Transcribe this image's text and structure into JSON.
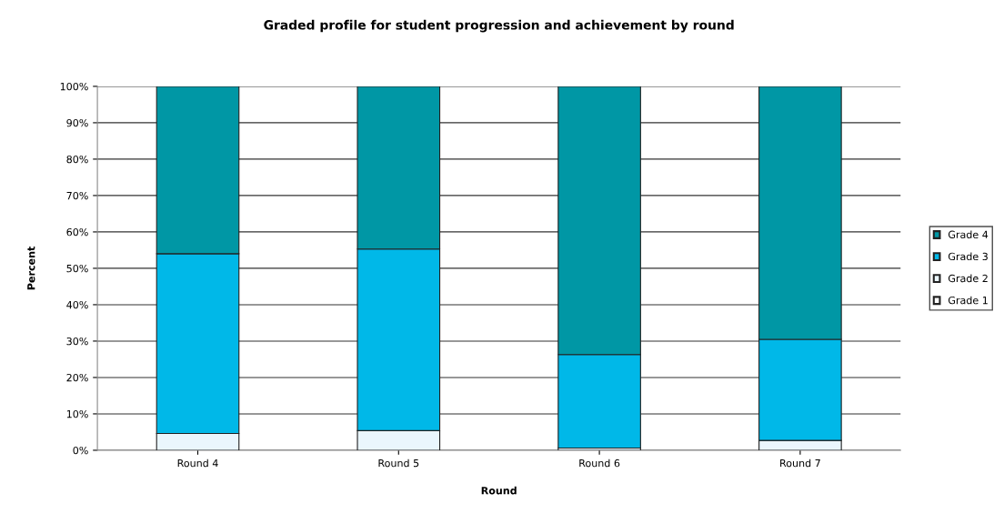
{
  "chart_data": {
    "type": "bar",
    "stacked": true,
    "title": "Graded profile for student progression and achievement by round",
    "xlabel": "Round",
    "ylabel": "Percent",
    "categories": [
      "Round 4",
      "Round 5",
      "Round 6",
      "Round 7"
    ],
    "series": [
      {
        "name": "Grade 1",
        "color": "#ffffff",
        "values": [
          0,
          0,
          0,
          0
        ]
      },
      {
        "name": "Grade 2",
        "color": "#eaf6fd",
        "values": [
          4.6,
          5.4,
          0.6,
          2.7
        ]
      },
      {
        "name": "Grade 3",
        "color": "#00b8e8",
        "values": [
          49.4,
          49.9,
          25.7,
          27.8
        ]
      },
      {
        "name": "Grade 4",
        "color": "#0097a5",
        "values": [
          46,
          44.7,
          73.7,
          69.5
        ]
      }
    ],
    "ylim": [
      0,
      100
    ],
    "yticks": [
      {
        "value": 0,
        "label": "0%"
      },
      {
        "value": 10,
        "label": "10%"
      },
      {
        "value": 20,
        "label": "20%"
      },
      {
        "value": 30,
        "label": "30%"
      },
      {
        "value": 40,
        "label": "40%"
      },
      {
        "value": 50,
        "label": "50%"
      },
      {
        "value": 60,
        "label": "60%"
      },
      {
        "value": 70,
        "label": "70%"
      },
      {
        "value": 80,
        "label": "80%"
      },
      {
        "value": 90,
        "label": "90%"
      },
      {
        "value": 100,
        "label": "100%"
      }
    ],
    "grid": "y",
    "legend": "right"
  }
}
